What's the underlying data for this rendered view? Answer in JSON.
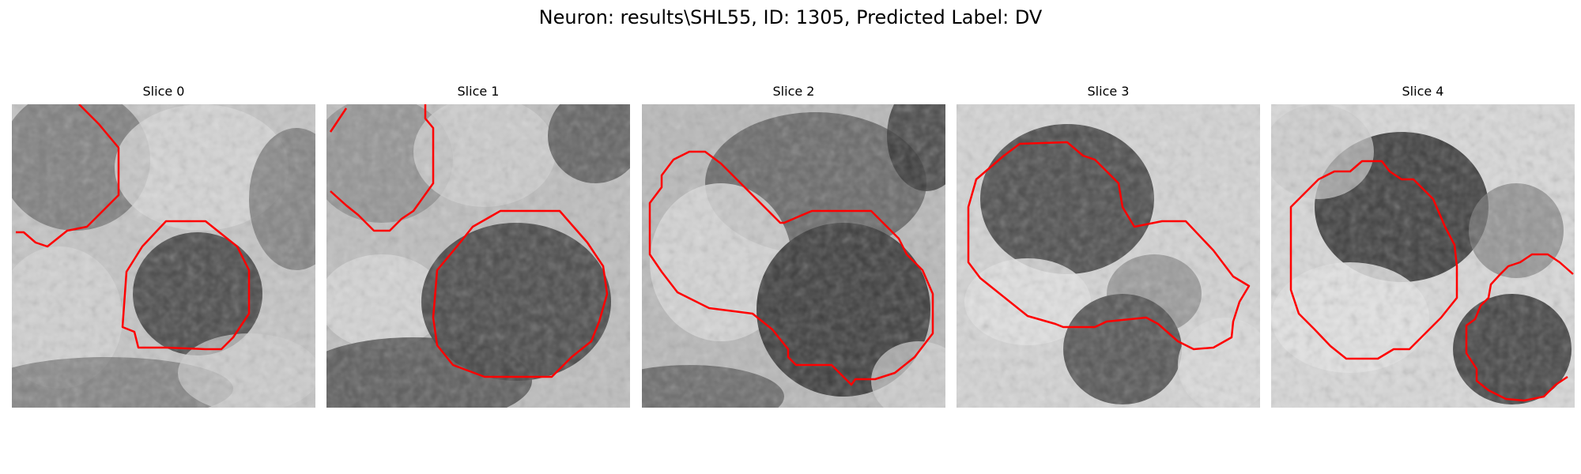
{
  "figure": {
    "title": "Neuron: results\\SHL55, ID: 1305, Predicted Label: DV"
  },
  "panels": [
    {
      "title": "Slice 0"
    },
    {
      "title": "Slice 1"
    },
    {
      "title": "Slice 2"
    },
    {
      "title": "Slice 3"
    },
    {
      "title": "Slice 4"
    }
  ],
  "colors": {
    "contour": "#ff0000",
    "image_light": "#e0e0e0",
    "image_dark": "#1a1a1a"
  }
}
